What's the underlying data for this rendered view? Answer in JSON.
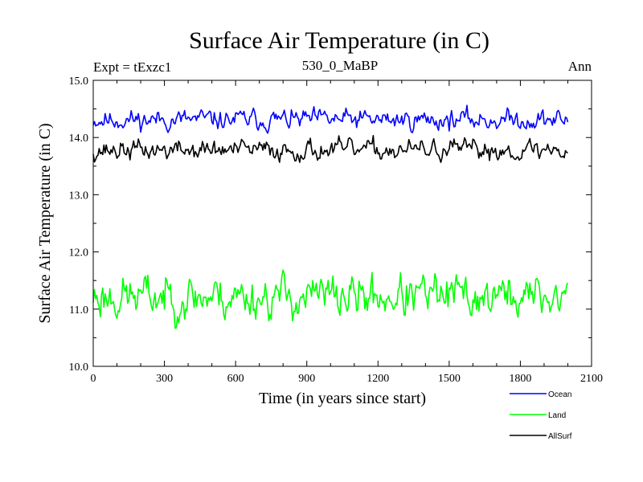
{
  "chart_data": {
    "type": "line",
    "title": "Surface Air Temperature (in C)",
    "subtitle_left": "Expt = tExzc1",
    "subtitle_center": "530_0_MaBP",
    "subtitle_right": "Ann",
    "xlabel": "Time (in years since start)",
    "ylabel": "Surface Air Temperature (in C)",
    "xlim": [
      0,
      2100
    ],
    "ylim": [
      10.0,
      15.0
    ],
    "x_ticks": [
      0,
      300,
      600,
      900,
      1200,
      1500,
      1800,
      2100
    ],
    "x_tick_labels": [
      "0",
      "300",
      "600",
      "900",
      "1200",
      "1500",
      "1800",
      "2100"
    ],
    "y_ticks": [
      10.0,
      11.0,
      12.0,
      13.0,
      14.0,
      15.0
    ],
    "y_tick_labels": [
      "10.0",
      "11.0",
      "12.0",
      "13.0",
      "14.0",
      "15.0"
    ],
    "x_range": [
      0,
      2000
    ],
    "x_step": 5,
    "legend_position": "bottom-right",
    "series": [
      {
        "name": "Ocean",
        "color": "#0000ff",
        "mean": 14.31,
        "spread": 0.13,
        "min_observed": 14.05,
        "max_observed": 14.65,
        "seed": 11
      },
      {
        "name": "Land",
        "color": "#00ff00",
        "mean": 11.22,
        "spread": 0.28,
        "min_observed": 10.58,
        "max_observed": 11.87,
        "seed": 23
      },
      {
        "name": "AllSurf",
        "color": "#000000",
        "mean": 13.78,
        "spread": 0.13,
        "min_observed": 13.4,
        "max_observed": 14.1,
        "seed": 37
      }
    ]
  }
}
